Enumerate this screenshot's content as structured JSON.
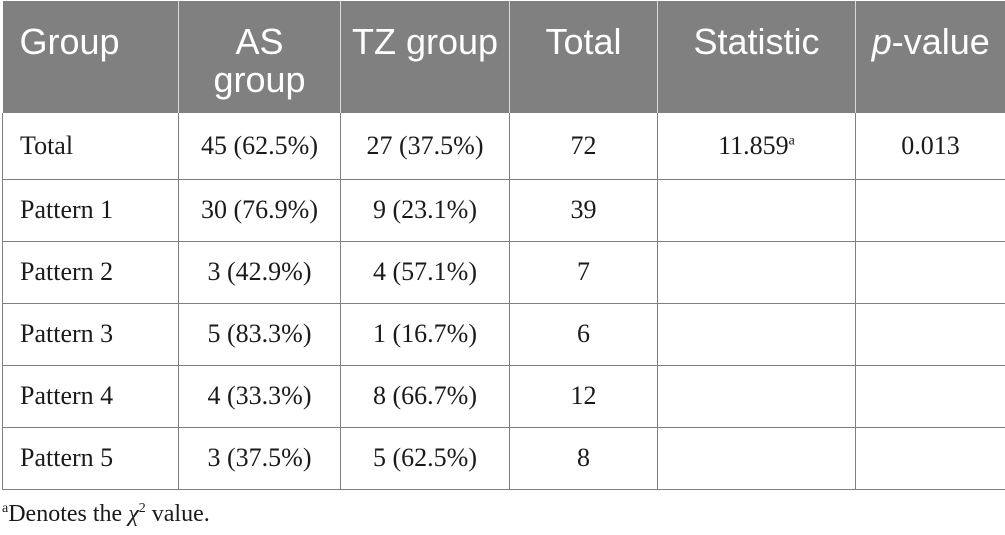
{
  "table": {
    "headers": {
      "group": "Group",
      "as_group": "AS group",
      "tz_group": "TZ group",
      "total": "Total",
      "statistic": "Statistic",
      "p_value_p": "p",
      "p_value_rest": "-value"
    },
    "rows": [
      {
        "group": "Total",
        "as": "45 (62.5%)",
        "tz": "27 (37.5%)",
        "total": "72",
        "statistic": "11.859",
        "statistic_sup": "a",
        "p_value": "0.013"
      },
      {
        "group": "Pattern 1",
        "as": "30 (76.9%)",
        "tz": "9 (23.1%)",
        "total": "39",
        "statistic": "",
        "statistic_sup": "",
        "p_value": ""
      },
      {
        "group": "Pattern 2",
        "as": "3 (42.9%)",
        "tz": "4 (57.1%)",
        "total": "7",
        "statistic": "",
        "statistic_sup": "",
        "p_value": ""
      },
      {
        "group": "Pattern 3",
        "as": "5 (83.3%)",
        "tz": "1 (16.7%)",
        "total": "6",
        "statistic": "",
        "statistic_sup": "",
        "p_value": ""
      },
      {
        "group": "Pattern 4",
        "as": "4 (33.3%)",
        "tz": "8 (66.7%)",
        "total": "12",
        "statistic": "",
        "statistic_sup": "",
        "p_value": ""
      },
      {
        "group": "Pattern 5",
        "as": "3 (37.5%)",
        "tz": "5 (62.5%)",
        "total": "8",
        "statistic": "",
        "statistic_sup": "",
        "p_value": ""
      }
    ]
  },
  "footnote": {
    "marker": "a",
    "text_before": "Denotes the ",
    "chi": "χ",
    "chi_sup": "2",
    "text_after": " value."
  },
  "colors": {
    "header_bg": "#808080",
    "header_text": "#ffffff",
    "border": "#808080",
    "body_text": "#1a1a1a"
  }
}
